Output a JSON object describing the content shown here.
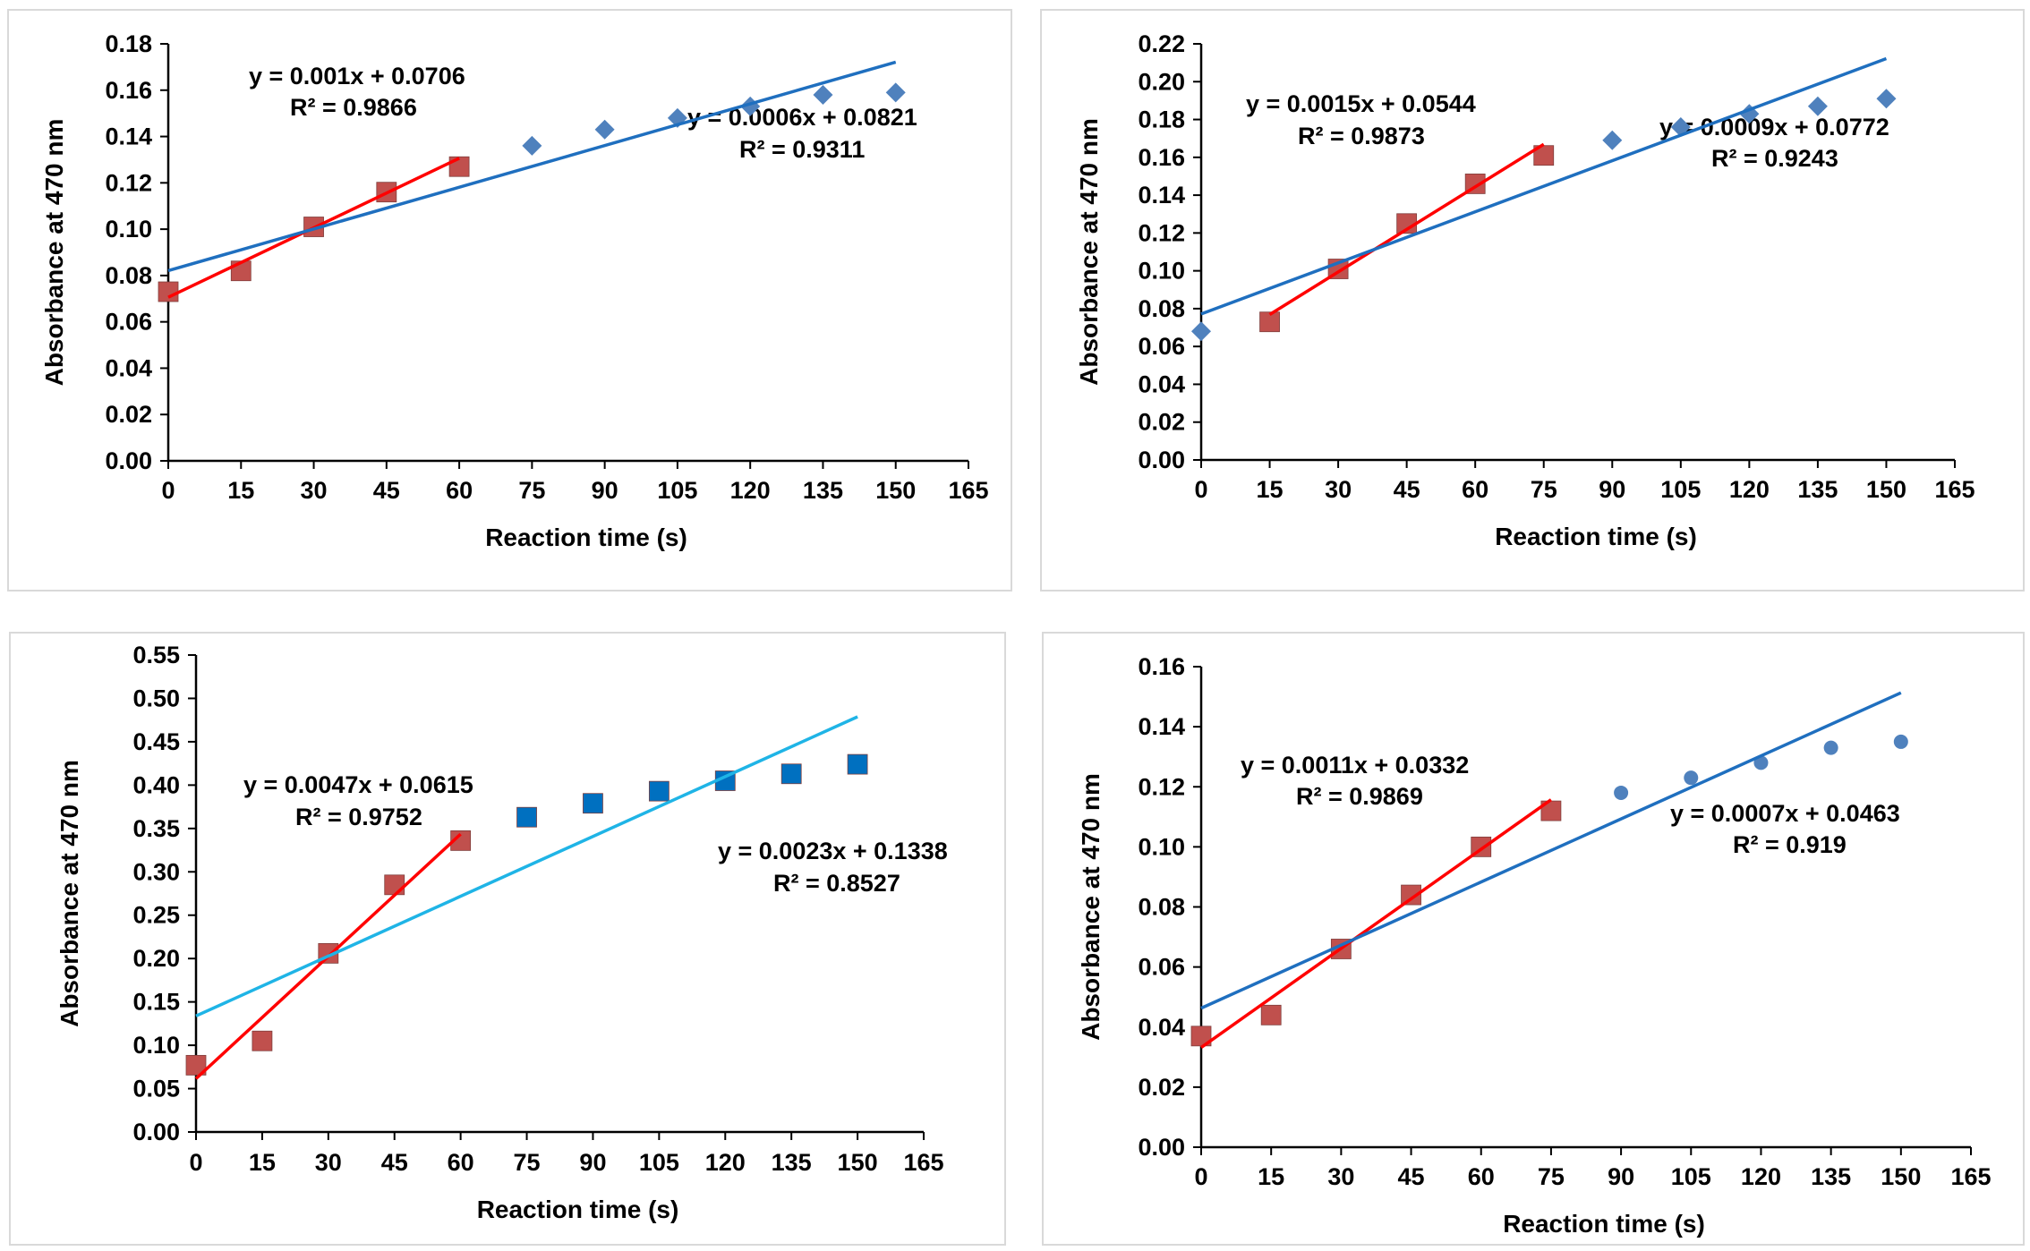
{
  "colors": {
    "red": "#c0504d",
    "red_line": "#ff0000",
    "blue": "#4f81bd",
    "blue_line": "#1f6fbf",
    "blue_square": "#0070c0",
    "light_blue_line": "#1fb4e6"
  },
  "chart_data": [
    {
      "type": "scatter",
      "xlabel": "Reaction time (s)",
      "ylabel": "Absorbance at 470 nm",
      "xlim": [
        0,
        165
      ],
      "xticks": [
        "0",
        "15",
        "30",
        "45",
        "60",
        "75",
        "90",
        "105",
        "120",
        "135",
        "150",
        "165"
      ],
      "ylim": [
        0,
        0.18
      ],
      "yticks": [
        "0.00",
        "0.02",
        "0.04",
        "0.06",
        "0.08",
        "0.10",
        "0.12",
        "0.14",
        "0.16",
        "0.18"
      ],
      "grid": false,
      "series": [
        {
          "marker": "diamond",
          "color": "#4f81bd",
          "x": [
            0,
            15,
            30,
            45,
            60,
            75,
            90,
            105,
            120,
            135,
            150
          ],
          "y": [
            0.073,
            0.082,
            0.101,
            0.116,
            0.127,
            0.136,
            0.143,
            0.148,
            0.153,
            0.158,
            0.159
          ]
        },
        {
          "marker": "square",
          "color": "#c0504d",
          "x": [
            0,
            15,
            30,
            45,
            60
          ],
          "y": [
            0.073,
            0.082,
            0.101,
            0.116,
            0.127
          ]
        }
      ],
      "trendlines": [
        {
          "slope": 0.001,
          "intercept": 0.0706,
          "x_range": [
            0,
            60
          ],
          "color": "#ff0000",
          "equation": "y = 0.001x + 0.0706",
          "r2": "R² = 0.9866"
        },
        {
          "slope": 0.0006,
          "intercept": 0.0821,
          "x_range": [
            0,
            150
          ],
          "color": "#1f6fbf",
          "equation": "y = 0.0006x + 0.0821",
          "r2": "R² = 0.9311"
        }
      ]
    },
    {
      "type": "scatter",
      "xlabel": "Reaction time (s)",
      "ylabel": "Absorbance at 470 nm",
      "xlim": [
        0,
        165
      ],
      "xticks": [
        "0",
        "15",
        "30",
        "45",
        "60",
        "75",
        "90",
        "105",
        "120",
        "135",
        "150",
        "165"
      ],
      "ylim": [
        0,
        0.22
      ],
      "yticks": [
        "0.00",
        "0.02",
        "0.04",
        "0.06",
        "0.08",
        "0.10",
        "0.12",
        "0.14",
        "0.16",
        "0.18",
        "0.20",
        "0.22"
      ],
      "grid": false,
      "series": [
        {
          "marker": "diamond",
          "color": "#4f81bd",
          "x": [
            0,
            15,
            30,
            45,
            60,
            75,
            90,
            105,
            120,
            135,
            150
          ],
          "y": [
            0.068,
            0.073,
            0.101,
            0.125,
            0.146,
            0.161,
            0.169,
            0.176,
            0.183,
            0.187,
            0.191
          ]
        },
        {
          "marker": "square",
          "color": "#c0504d",
          "x": [
            15,
            30,
            45,
            60,
            75
          ],
          "y": [
            0.073,
            0.101,
            0.125,
            0.146,
            0.161
          ]
        }
      ],
      "trendlines": [
        {
          "slope": 0.0015,
          "intercept": 0.0544,
          "x_range": [
            15,
            75
          ],
          "color": "#ff0000",
          "equation": "y = 0.0015x + 0.0544",
          "r2": "R² = 0.9873"
        },
        {
          "slope": 0.0009,
          "intercept": 0.0772,
          "x_range": [
            0,
            150
          ],
          "color": "#1f6fbf",
          "equation": "y = 0.0009x + 0.0772",
          "r2": "R² = 0.9243"
        }
      ]
    },
    {
      "type": "scatter",
      "xlabel": "Reaction time (s)",
      "ylabel": "Absorbance at 470 nm",
      "xlim": [
        0,
        165
      ],
      "xticks": [
        "0",
        "15",
        "30",
        "45",
        "60",
        "75",
        "90",
        "105",
        "120",
        "135",
        "150",
        "165"
      ],
      "ylim": [
        0,
        0.55
      ],
      "yticks": [
        "0.00",
        "0.05",
        "0.10",
        "0.15",
        "0.20",
        "0.25",
        "0.30",
        "0.35",
        "0.40",
        "0.45",
        "0.50",
        "0.55"
      ],
      "grid": false,
      "series": [
        {
          "marker": "square",
          "color": "#0070c0",
          "x": [
            75,
            90,
            105,
            120,
            135,
            150
          ],
          "y": [
            0.363,
            0.379,
            0.393,
            0.405,
            0.413,
            0.424
          ]
        },
        {
          "marker": "square",
          "color": "#c0504d",
          "x": [
            0,
            15,
            30,
            45,
            60
          ],
          "y": [
            0.077,
            0.105,
            0.206,
            0.285,
            0.336
          ]
        }
      ],
      "trendlines": [
        {
          "slope": 0.0047,
          "intercept": 0.0615,
          "x_range": [
            0,
            60
          ],
          "color": "#ff0000",
          "equation": "y = 0.0047x + 0.0615",
          "r2": "R² = 0.9752"
        },
        {
          "slope": 0.0023,
          "intercept": 0.1338,
          "x_range": [
            0,
            150
          ],
          "color": "#1fb4e6",
          "equation": "y = 0.0023x + 0.1338",
          "r2": "R² = 0.8527"
        }
      ]
    },
    {
      "type": "scatter",
      "xlabel": "Reaction time (s)",
      "ylabel": "Absorbance at 470 nm",
      "xlim": [
        0,
        165
      ],
      "xticks": [
        "0",
        "15",
        "30",
        "45",
        "60",
        "75",
        "90",
        "105",
        "120",
        "135",
        "150",
        "165"
      ],
      "ylim": [
        0,
        0.16
      ],
      "yticks": [
        "0.00",
        "0.02",
        "0.04",
        "0.06",
        "0.08",
        "0.10",
        "0.12",
        "0.14",
        "0.16"
      ],
      "grid": false,
      "series": [
        {
          "marker": "circle",
          "color": "#4f81bd",
          "x": [
            0,
            15,
            30,
            45,
            60,
            75,
            90,
            105,
            120,
            135,
            150
          ],
          "y": [
            0.037,
            0.044,
            0.066,
            0.084,
            0.1,
            0.112,
            0.118,
            0.123,
            0.128,
            0.133,
            0.135
          ]
        },
        {
          "marker": "square",
          "color": "#c0504d",
          "x": [
            0,
            15,
            30,
            45,
            60,
            75
          ],
          "y": [
            0.037,
            0.044,
            0.066,
            0.084,
            0.1,
            0.112
          ]
        }
      ],
      "trendlines": [
        {
          "slope": 0.0011,
          "intercept": 0.0332,
          "x_range": [
            0,
            75
          ],
          "color": "#ff0000",
          "equation": "y = 0.0011x + 0.0332",
          "r2": "R² = 0.9869"
        },
        {
          "slope": 0.0007,
          "intercept": 0.0463,
          "x_range": [
            0,
            150
          ],
          "color": "#1f6fbf",
          "equation": "y = 0.0007x + 0.0463",
          "r2": "R² = 0.919"
        }
      ]
    }
  ]
}
